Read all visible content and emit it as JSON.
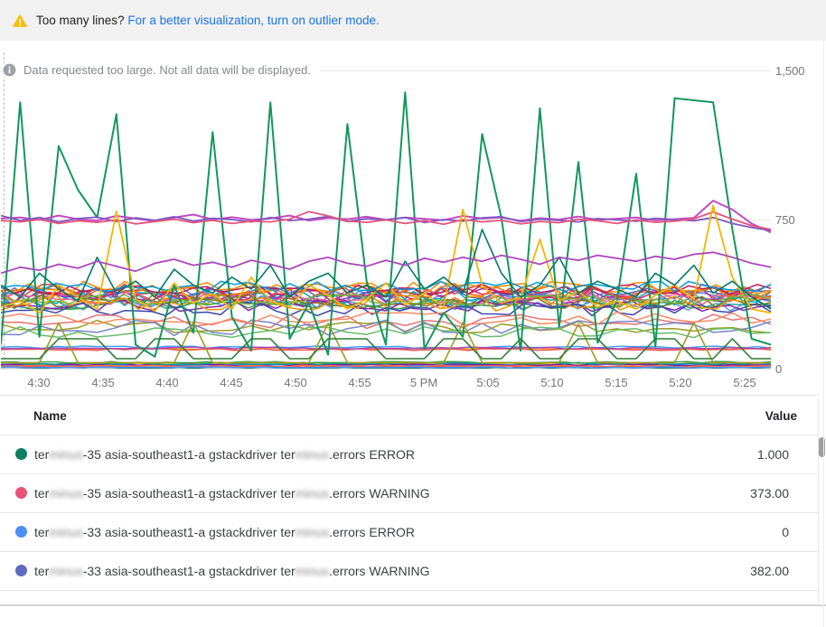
{
  "colors": {
    "link": "#1a73e8",
    "warning_icon": "#fbbc04",
    "info_icon": "#9aa0a6",
    "grid": "#e7e7e7",
    "axis_text": "#757575"
  },
  "banner": {
    "warning_text": "Too many lines?",
    "link_text": "For a better visualization, turn on outlier mode."
  },
  "notice": {
    "text": "Data requested too large. Not all data will be displayed."
  },
  "chart_data": {
    "type": "line",
    "title": "",
    "xlabel": "",
    "ylabel": "",
    "ylim": [
      0,
      1500
    ],
    "grid": true,
    "legend_position": "table-below",
    "x_ticks": [
      "4:30",
      "4:35",
      "4:40",
      "4:45",
      "4:50",
      "4:55",
      "5 PM",
      "5:05",
      "5:10",
      "5:15",
      "5:20",
      "5:25"
    ],
    "y_ticks": [
      "1,500",
      "750",
      "0"
    ],
    "series": [
      {
        "color": "#12975c",
        "width": 2,
        "points": [
          120,
          1340,
          160,
          1120,
          900,
          760,
          1280,
          120,
          60,
          420,
          180,
          1190,
          260,
          90,
          1340,
          150,
          330,
          70,
          1230,
          440,
          120,
          1390,
          100,
          280,
          160,
          1180,
          760,
          90,
          1310,
          210,
          1040,
          130,
          340,
          980,
          110,
          1360,
          1350,
          1340,
          700,
          150,
          120
        ]
      },
      {
        "color": "#c24ac2",
        "width": 2,
        "points": [
          755,
          760,
          748,
          770,
          752,
          745,
          768,
          755,
          742,
          760,
          775,
          750,
          762,
          748,
          756,
          770,
          745,
          758,
          752,
          764,
          749,
          760,
          753,
          747,
          768,
          755,
          760,
          744,
          757,
          750,
          765,
          748,
          754,
          760,
          746,
          752,
          758,
          845,
          800,
          730,
          685
        ]
      },
      {
        "color": "#7e57c2",
        "width": 1.8,
        "points": [
          770,
          745,
          760,
          738,
          755,
          762,
          740,
          758,
          746,
          764,
          742,
          756,
          750,
          738,
          760,
          745,
          752,
          766,
          740,
          754,
          748,
          760,
          735,
          750,
          742,
          758,
          764,
          740,
          752,
          746,
          738,
          755,
          748,
          742,
          756,
          750,
          744,
          760,
          730,
          710,
          695
        ]
      },
      {
        "color": "#e8537a",
        "width": 1.8,
        "points": [
          745,
          738,
          750,
          730,
          744,
          736,
          748,
          728,
          740,
          752,
          734,
          746,
          730,
          742,
          738,
          752,
          790,
          768,
          742,
          736,
          748,
          730,
          744,
          726,
          750,
          738,
          746,
          728,
          740,
          734,
          752,
          744,
          730,
          748,
          736,
          742,
          754,
          788,
          752,
          720,
          700
        ]
      },
      {
        "color": "#f4b400",
        "width": 1.8,
        "points": [
          310,
          340,
          280,
          420,
          360,
          300,
          790,
          350,
          290,
          430,
          330,
          380,
          300,
          460,
          340,
          310,
          420,
          370,
          300,
          350,
          430,
          320,
          380,
          310,
          800,
          420,
          330,
          360,
          650,
          340,
          390,
          310,
          340,
          300,
          370,
          420,
          350,
          820,
          460,
          300,
          280
        ]
      },
      {
        "color": "#00796b",
        "width": 1.6,
        "points": [
          420,
          360,
          480,
          400,
          340,
          560,
          380,
          440,
          360,
          500,
          420,
          380,
          460,
          400,
          520,
          360,
          440,
          480,
          380,
          420,
          360,
          540,
          400,
          460,
          380,
          700,
          480,
          360,
          420,
          560,
          380,
          440,
          400,
          360,
          480,
          420,
          520,
          380,
          440,
          360,
          300
        ]
      },
      {
        "color": "#ab47bc",
        "width": 1.8,
        "points": [
          480,
          510,
          495,
          525,
          505,
          540,
          515,
          490,
          530,
          550,
          520,
          535,
          510,
          545,
          525,
          500,
          540,
          560,
          530,
          515,
          545,
          520,
          555,
          535,
          560,
          540,
          570,
          550,
          525,
          560,
          545,
          570,
          555,
          540,
          565,
          550,
          575,
          585,
          560,
          530,
          510
        ]
      },
      {
        "color": "#9e9d24",
        "width": 1.6,
        "points": [
          30,
          30,
          30,
          230,
          30,
          30,
          30,
          30,
          30,
          30,
          235,
          30,
          30,
          30,
          30,
          30,
          30,
          228,
          30,
          30,
          30,
          30,
          30,
          30,
          232,
          30,
          30,
          30,
          30,
          30,
          225,
          30,
          30,
          30,
          30,
          30,
          230,
          30,
          30,
          30,
          30
        ]
      },
      {
        "color": "#2e7d32",
        "width": 1.6,
        "points": [
          50,
          50,
          50,
          150,
          150,
          150,
          50,
          50,
          150,
          150,
          50,
          50,
          50,
          150,
          150,
          50,
          50,
          150,
          150,
          150,
          50,
          50,
          50,
          150,
          150,
          50,
          50,
          150,
          50,
          50,
          150,
          150,
          50,
          50,
          150,
          150,
          50,
          50,
          150,
          50,
          50
        ]
      }
    ],
    "generated_series": [
      {
        "color": "#db4437",
        "base": 380,
        "amp": 45,
        "seed": 1,
        "n": 57
      },
      {
        "color": "#ff7043",
        "base": 355,
        "amp": 40,
        "seed": 2,
        "n": 57
      },
      {
        "color": "#4285f4",
        "base": 350,
        "amp": 45,
        "seed": 3,
        "n": 57
      },
      {
        "color": "#5e97f6",
        "base": 325,
        "amp": 35,
        "seed": 4,
        "n": 57
      },
      {
        "color": "#00acc1",
        "base": 360,
        "amp": 40,
        "seed": 5,
        "n": 57
      },
      {
        "color": "#26a69a",
        "base": 338,
        "amp": 35,
        "seed": 6,
        "n": 57
      },
      {
        "color": "#9c27b0",
        "base": 368,
        "amp": 40,
        "seed": 7,
        "n": 57
      },
      {
        "color": "#e91e63",
        "base": 373,
        "amp": 35,
        "seed": 8,
        "n": 57
      },
      {
        "color": "#5c6bc0",
        "base": 382,
        "amp": 35,
        "seed": 9,
        "n": 57
      },
      {
        "color": "#f06292",
        "base": 352,
        "amp": 30,
        "seed": 10,
        "n": 57
      },
      {
        "color": "#ef6c00",
        "base": 392,
        "amp": 38,
        "seed": 11,
        "n": 57
      },
      {
        "color": "#827717",
        "base": 338,
        "amp": 35,
        "seed": 12,
        "n": 57
      },
      {
        "color": "#43a047",
        "base": 328,
        "amp": 30,
        "seed": 13,
        "n": 57
      },
      {
        "color": "#8e24aa",
        "base": 318,
        "amp": 30,
        "seed": 14,
        "n": 57
      },
      {
        "color": "#3949ab",
        "base": 300,
        "amp": 35,
        "seed": 15,
        "n": 57
      },
      {
        "color": "#fb8c00",
        "base": 408,
        "amp": 35,
        "seed": 16,
        "n": 57
      },
      {
        "color": "#c2185b",
        "base": 398,
        "amp": 30,
        "seed": 17,
        "n": 57
      },
      {
        "color": "#039be5",
        "base": 412,
        "amp": 30,
        "seed": 18,
        "n": 57
      },
      {
        "color": "#f09300",
        "base": 330,
        "amp": 40,
        "seed": 19,
        "n": 57
      },
      {
        "color": "#7cb342",
        "base": 345,
        "amp": 30,
        "seed": 20,
        "n": 57
      },
      {
        "color": "#e57373",
        "base": 238,
        "amp": 40,
        "seed": 21,
        "n": 41
      },
      {
        "color": "#9e9d24",
        "base": 215,
        "amp": 35,
        "seed": 22,
        "n": 41
      },
      {
        "color": "#7986cb",
        "base": 205,
        "amp": 40,
        "seed": 23,
        "n": 41
      },
      {
        "color": "#66bb6a",
        "base": 182,
        "amp": 30,
        "seed": 24,
        "n": 41
      },
      {
        "color": "#ff8a65",
        "base": 252,
        "amp": 35,
        "seed": 25,
        "n": 41
      },
      {
        "color": "#42a5f5",
        "base": 108,
        "amp": 6,
        "seed": 26,
        "n": 57
      },
      {
        "color": "#ffa726",
        "base": 101,
        "amp": 5,
        "seed": 27,
        "n": 57
      },
      {
        "color": "#ef5350",
        "base": 96,
        "amp": 5,
        "seed": 28,
        "n": 57
      },
      {
        "color": "#ab47bc",
        "base": 104,
        "amp": 5,
        "seed": 29,
        "n": 57
      },
      {
        "color": "#f4b400",
        "base": 24,
        "amp": 6,
        "seed": 30,
        "n": 57
      },
      {
        "color": "#4285f4",
        "base": 16,
        "amp": 5,
        "seed": 31,
        "n": 57
      },
      {
        "color": "#db4437",
        "base": 10,
        "amp": 4,
        "seed": 32,
        "n": 57
      },
      {
        "color": "#7b1fa2",
        "base": 19,
        "amp": 5,
        "seed": 33,
        "n": 57
      },
      {
        "color": "#0097a7",
        "base": 26,
        "amp": 6,
        "seed": 34,
        "n": 57
      },
      {
        "color": "#ff7043",
        "base": 13,
        "amp": 4,
        "seed": 35,
        "n": 57
      },
      {
        "color": "#0c8061",
        "base": 4,
        "amp": 3,
        "seed": 36,
        "n": 57
      },
      {
        "color": "#4d8ff7",
        "base": 6,
        "amp": 3,
        "seed": 37,
        "n": 57
      },
      {
        "color": "#43a047",
        "base": 30,
        "amp": 6,
        "seed": 38,
        "n": 57
      }
    ]
  },
  "legend_table": {
    "columns": {
      "name": "Name",
      "value": "Value"
    },
    "rows": [
      {
        "dot_color": "#0c8061",
        "value": "1.000",
        "name_segments": [
          {
            "text": "ter"
          },
          {
            "text": "minus",
            "blurred": true
          },
          {
            "text": "-35 asia-southeast1-a gstackdriver ter"
          },
          {
            "text": "minus",
            "blurred": true
          },
          {
            "text": ".errors ERROR"
          }
        ]
      },
      {
        "dot_color": "#e8537a",
        "value": "373.00",
        "name_segments": [
          {
            "text": "ter"
          },
          {
            "text": "minus",
            "blurred": true
          },
          {
            "text": "-35 asia-southeast1-a gstackdriver ter"
          },
          {
            "text": "minus",
            "blurred": true
          },
          {
            "text": ".errors WARNING"
          }
        ]
      },
      {
        "dot_color": "#4d8ff7",
        "value": "0",
        "name_segments": [
          {
            "text": "ter"
          },
          {
            "text": "minus",
            "blurred": true
          },
          {
            "text": "-33 asia-southeast1-a gstackdriver ter"
          },
          {
            "text": "minus",
            "blurred": true
          },
          {
            "text": ".errors ERROR"
          }
        ]
      },
      {
        "dot_color": "#5e6bc0",
        "value": "382.00",
        "name_segments": [
          {
            "text": "ter"
          },
          {
            "text": "minus",
            "blurred": true
          },
          {
            "text": "-33 asia-southeast1-a gstackdriver ter"
          },
          {
            "text": "minus",
            "blurred": true
          },
          {
            "text": ".errors WARNING"
          }
        ]
      }
    ]
  }
}
